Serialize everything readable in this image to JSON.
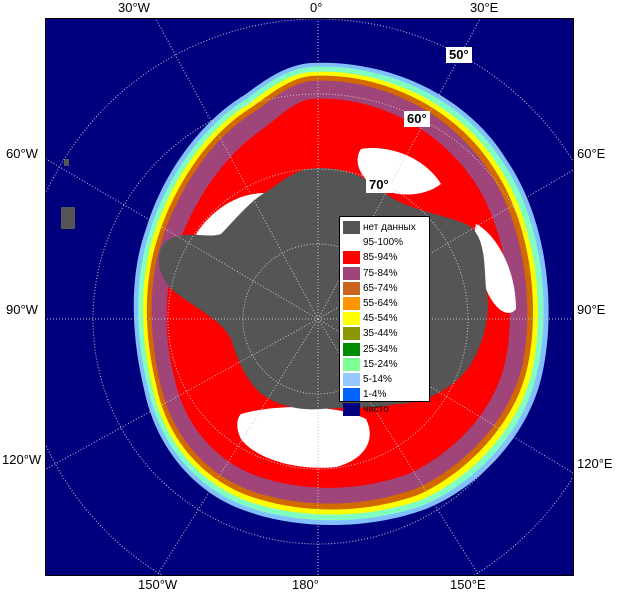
{
  "map": {
    "ocean_color": "#00007f",
    "land_color": "#555555",
    "fast_ice_color": "#555555",
    "ice_colors": {
      "pack_red": "#ff0000",
      "pack_purple": "#a0457a",
      "pack_white": "#ffffff",
      "edge_orange": "#d36a00",
      "edge_yellow": "#ffff00",
      "edge_green": "#00a000",
      "edge_cyan": "#80ffc0",
      "edge_lightblue": "#80c0ff"
    }
  },
  "longitude_labels": {
    "top": [
      "30°W",
      "0°",
      "30°E"
    ],
    "left": [
      "60°W",
      "90°W",
      "120°W"
    ],
    "right": [
      "60°E",
      "90°E",
      "120°E"
    ],
    "bottom": [
      "150°W",
      "180°",
      "150°E"
    ]
  },
  "latitude_labels": [
    "50°",
    "60°",
    "70°"
  ],
  "legend": {
    "items": [
      {
        "label": "нет данных",
        "color": "#555555"
      },
      {
        "label": "95-100%",
        "color": "#ffffff"
      },
      {
        "label": "85-94%",
        "color": "#ff0000"
      },
      {
        "label": "75-84%",
        "color": "#a0457a"
      },
      {
        "label": "65-74%",
        "color": "#c8641e"
      },
      {
        "label": "55-64%",
        "color": "#ff9600"
      },
      {
        "label": "45-54%",
        "color": "#ffff00"
      },
      {
        "label": "35-44%",
        "color": "#8c9600"
      },
      {
        "label": "25-34%",
        "color": "#008c00"
      },
      {
        "label": "15-24%",
        "color": "#80ff96"
      },
      {
        "label": "5-14%",
        "color": "#96c8ff"
      },
      {
        "label": "1-4%",
        "color": "#0064ff"
      },
      {
        "label": "чисто",
        "color": "#00007f"
      }
    ]
  }
}
